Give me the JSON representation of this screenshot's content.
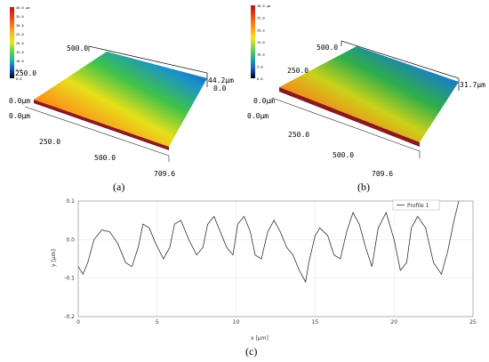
{
  "panels": {
    "a": {
      "caption": "(a)",
      "colorbar": {
        "labels": [
          "40.0 μm",
          "35.0",
          "30.0",
          "25.0",
          "20.0",
          "15.0",
          "10.0",
          "5.0",
          "0.0"
        ],
        "colors": [
          "#c0101a",
          "#ff3a1a",
          "#ff9a1a",
          "#ffe11a",
          "#8ee04a",
          "#17b86b",
          "#1a7fd0",
          "#121f9a",
          "#000000"
        ]
      },
      "axis_labels": {
        "y_top": "500.0",
        "y_mid": "250.0",
        "origin_y": "0.0μm",
        "origin_x": "0.0μm",
        "x_mid": "250.0",
        "x_far": "500.0",
        "x_end": "709.6",
        "z_max": "44.2μm",
        "z_min": "0.0"
      }
    },
    "b": {
      "caption": "(b)",
      "colorbar": {
        "labels": [
          "30.0 μm",
          "25.0",
          "20.0",
          "15.0",
          "10.0",
          "5.0",
          "0.0"
        ],
        "colors": [
          "#c0101a",
          "#ff7a1a",
          "#ffe11a",
          "#6fd24f",
          "#15a7a0",
          "#1a50c0",
          "#000000"
        ]
      },
      "axis_labels": {
        "y_top": "500.0",
        "y_mid": "250.0",
        "origin_y": "0.0μm",
        "origin_x": "0.0μm",
        "x_mid": "250.0",
        "x_far": "500.0",
        "x_end": "709.6",
        "z_max": "31.7μm"
      }
    },
    "c": {
      "caption": "(c)"
    }
  },
  "chart_data": {
    "type": "line",
    "xlabel": "x [μm]",
    "ylabel": "y [μm]",
    "xlim": [
      0,
      25
    ],
    "ylim": [
      -0.2,
      0.1
    ],
    "xticks": [
      0,
      5,
      10,
      15,
      20,
      25
    ],
    "yticks": [
      0.1,
      0,
      -0.1,
      -0.2
    ],
    "xtick_labels": [
      "0",
      "5",
      "10",
      "15",
      "20",
      "25"
    ],
    "ytick_labels": [
      "0.1",
      "0.0",
      "-0.1",
      "-0.2"
    ],
    "grid": true,
    "legend": "top-right",
    "series": [
      {
        "name": "Profile 1",
        "color": "#333333",
        "x": [
          0,
          0.3,
          0.6,
          1.0,
          1.5,
          2.0,
          2.5,
          3.0,
          3.4,
          3.8,
          4.1,
          4.5,
          4.9,
          5.4,
          5.8,
          6.1,
          6.5,
          7.0,
          7.5,
          7.9,
          8.2,
          8.6,
          9.0,
          9.4,
          9.8,
          10.1,
          10.5,
          10.9,
          11.2,
          11.6,
          12.0,
          12.4,
          12.8,
          13.2,
          13.6,
          14.0,
          14.4,
          14.6,
          15.0,
          15.3,
          15.8,
          16.2,
          16.6,
          17.0,
          17.4,
          17.8,
          18.2,
          18.6,
          19.0,
          19.5,
          20.0,
          20.4,
          20.8,
          21.1,
          21.5,
          22.0,
          22.5,
          23.0,
          23.4,
          23.8,
          24.1
        ],
        "y": [
          -0.07,
          -0.09,
          -0.06,
          0.0,
          0.025,
          0.02,
          -0.01,
          -0.06,
          -0.07,
          -0.02,
          0.04,
          0.03,
          -0.01,
          -0.05,
          -0.02,
          0.04,
          0.05,
          0.0,
          -0.04,
          -0.02,
          0.04,
          0.06,
          0.02,
          -0.02,
          -0.04,
          0.04,
          0.06,
          0.02,
          -0.04,
          -0.05,
          0.02,
          0.05,
          0.02,
          -0.02,
          -0.04,
          -0.08,
          -0.11,
          -0.06,
          0.01,
          0.03,
          0.01,
          -0.04,
          -0.05,
          0.02,
          0.07,
          0.04,
          -0.02,
          -0.07,
          0.03,
          0.07,
          0.0,
          -0.08,
          -0.06,
          0.03,
          0.06,
          0.03,
          -0.06,
          -0.09,
          -0.03,
          0.05,
          0.1
        ]
      }
    ]
  }
}
